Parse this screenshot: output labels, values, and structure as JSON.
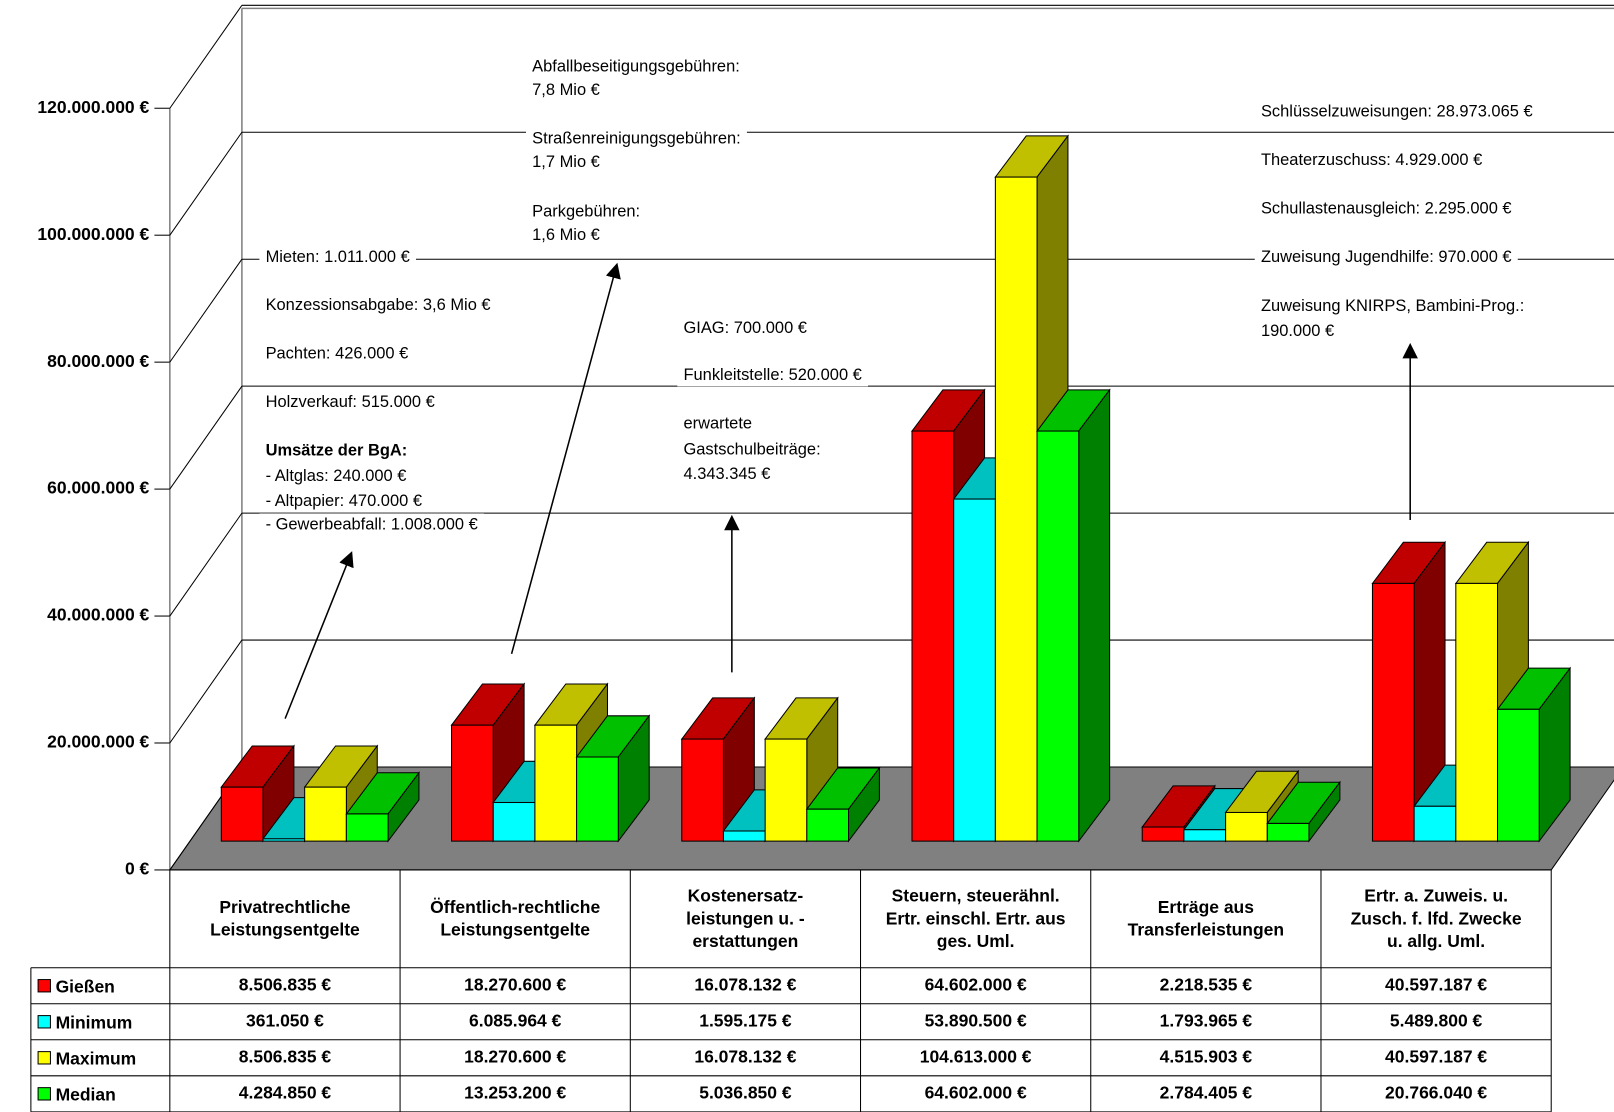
{
  "chart_data": {
    "type": "bar3d",
    "categories": [
      "Privatrechtliche\nLeistungsentgelte",
      "Öffentlich-rechtliche\nLeistungsentgelte",
      "Kostenersatz-\nleistungen u. -\nerstattungen",
      "Steuern, steuerähnl.\nErtr. einschl. Ertr. aus\nges. Uml.",
      "Erträge aus\nTransferleistungen",
      "Ertr. a. Zuweis. u.\nZusch. f. lfd. Zwecke\nu. allg. Uml."
    ],
    "series": [
      {
        "name": "Gießen",
        "color": "#ff0000",
        "values": [
          8506835,
          18270600,
          16078132,
          64602000,
          2218535,
          40597187
        ],
        "value_labels": [
          "8.506.835 €",
          "18.270.600 €",
          "16.078.132 €",
          "64.602.000 €",
          "2.218.535 €",
          "40.597.187 €"
        ]
      },
      {
        "name": "Minimum",
        "color": "#00ffff",
        "values": [
          361050,
          6085964,
          1595175,
          53890500,
          1793965,
          5489800
        ],
        "value_labels": [
          "361.050 €",
          "6.085.964 €",
          "1.595.175 €",
          "53.890.500 €",
          "1.793.965 €",
          "5.489.800 €"
        ]
      },
      {
        "name": "Maximum",
        "color": "#ffff00",
        "values": [
          8506835,
          18270600,
          16078132,
          104613000,
          4515903,
          40597187
        ],
        "value_labels": [
          "8.506.835 €",
          "18.270.600 €",
          "16.078.132 €",
          "104.613.000 €",
          "4.515.903 €",
          "40.597.187 €"
        ]
      },
      {
        "name": "Median",
        "color": "#00ff00",
        "values": [
          4284850,
          13253200,
          5036850,
          64602000,
          2784405,
          20766040
        ],
        "value_labels": [
          "4.284.850 €",
          "13.253.200 €",
          "5.036.850 €",
          "64.602.000 €",
          "2.784.405 €",
          "20.766.040 €"
        ]
      }
    ],
    "ylim": [
      0,
      120000000
    ],
    "yticks": [
      {
        "value": 0,
        "label": "0 €"
      },
      {
        "value": 20000000,
        "label": "20.000.000 €"
      },
      {
        "value": 40000000,
        "label": "40.000.000 €"
      },
      {
        "value": 60000000,
        "label": "60.000.000 €"
      },
      {
        "value": 80000000,
        "label": "80.000.000 €"
      },
      {
        "value": 100000000,
        "label": "100.000.000 €"
      },
      {
        "value": 120000000,
        "label": "120.000.000 €"
      }
    ],
    "grid": true,
    "annotations": [
      "Mieten: 1.011.000 €",
      "Konzessionsabgabe: 3,6 Mio €",
      "Pachten: 426.000 €",
      "Holzverkauf: 515.000 €",
      "Umsätze der BgA:",
      " - Altglas: 240.000 €",
      " - Altpapier: 470.000 €",
      " - Gewerbeabfall: 1.008.000 €",
      "Abfallbeseitigungsgebühren:",
      "7,8 Mio €",
      "Straßenreinigungsgebühren:",
      "1,7 Mio €",
      "Parkgebühren:",
      "1,6 Mio €",
      "GIAG: 700.000 €",
      "Funkleitstelle: 520.000 €",
      "erwartete",
      "Gastschulbeiträge:",
      "4.343.345 €",
      "Schlüsselzuweisungen: 28.973.065 €",
      "Theaterzuschuss: 4.929.000 €",
      "Schullastenausgleich: 2.295.000 €",
      "Zuweisung Jugendhilfe: 970.000 €",
      "Zuweisung KNIRPS, Bambini-Prog.:",
      "190.000 €"
    ]
  }
}
